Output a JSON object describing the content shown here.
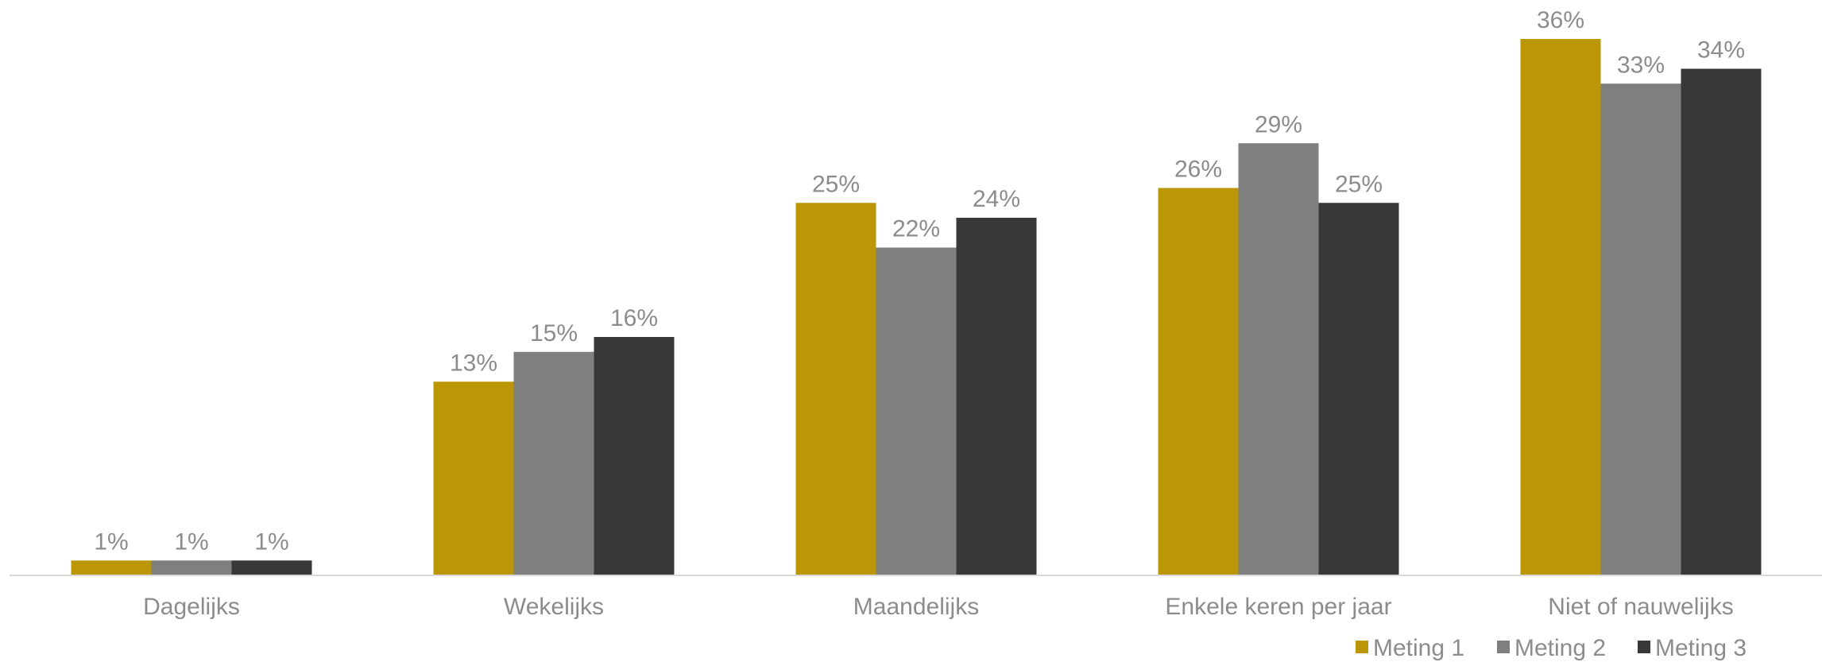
{
  "chart_data": {
    "type": "bar",
    "title": "",
    "xlabel": "",
    "ylabel": "",
    "ylim": [
      0,
      37.5
    ],
    "grid": false,
    "legend_position": "bottom-right",
    "value_format": "{v}%",
    "categories": [
      "Dagelijks",
      "Wekelijks",
      "Maandelijks",
      "Enkele keren per jaar",
      "Niet of nauwelijks"
    ],
    "series": [
      {
        "name": "Meting 1",
        "color": "#bb9707",
        "values": [
          1,
          13,
          25,
          26,
          36
        ]
      },
      {
        "name": "Meting 2",
        "color": "#7f7f7f",
        "values": [
          1,
          15,
          22,
          29,
          33
        ]
      },
      {
        "name": "Meting 3",
        "color": "#383838",
        "values": [
          1,
          16,
          24,
          25,
          34
        ]
      }
    ]
  },
  "colors": {
    "axis": "#d9d9d9",
    "label_text": "#8c8c8c"
  }
}
